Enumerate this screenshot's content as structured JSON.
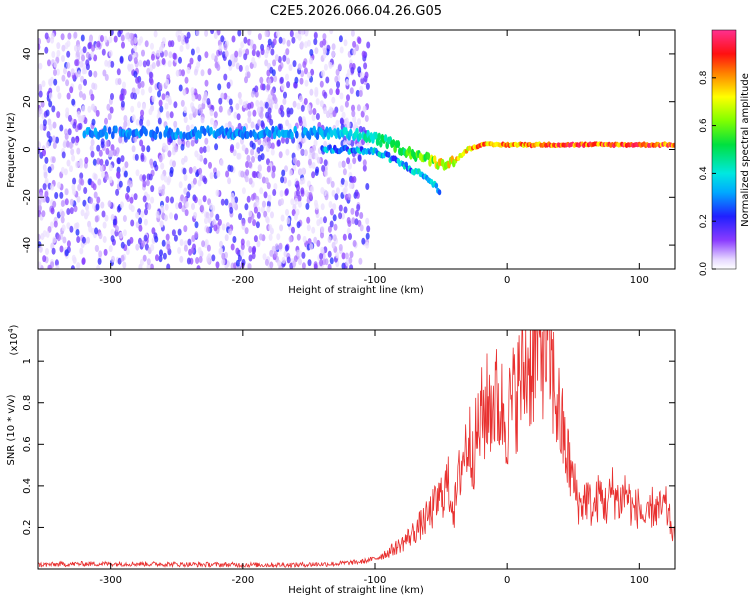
{
  "title": "C2E5.2026.066.04.26.G05",
  "colorbar": {
    "label": "Normalized spectral amplitude",
    "ticks": [
      "0.0",
      "0.2",
      "0.4",
      "0.6",
      "0.8"
    ],
    "range": [
      0,
      1
    ]
  },
  "chart_data": [
    {
      "type": "heatmap",
      "title": "C2E5.2026.066.04.26.G05",
      "xlabel": "Height of straight line (km)",
      "ylabel": "Frequency (Hz)",
      "xlim": [
        -355,
        127
      ],
      "ylim": [
        -50,
        50
      ],
      "x_ticks": [
        -300,
        -200,
        -100,
        0,
        100
      ],
      "x_tick_labels": [
        "-300",
        "-200",
        "-100",
        "0",
        "100"
      ],
      "y_ticks": [
        -40,
        -20,
        0,
        20,
        40
      ],
      "y_tick_labels": [
        "-40",
        "-20",
        "0",
        "20",
        "40"
      ],
      "noise_region_x": [
        -355,
        -105
      ],
      "signal_trace": {
        "x": [
          -320,
          -250,
          -200,
          -150,
          -110,
          -90,
          -75,
          -60,
          -50,
          -40,
          -30,
          -20,
          0,
          50,
          100,
          127
        ],
        "frequency": [
          7,
          7,
          7,
          7,
          6,
          3,
          -1,
          -4,
          -6,
          -5,
          0,
          2,
          2,
          2,
          2,
          2
        ],
        "amplitude": [
          0.3,
          0.3,
          0.3,
          0.3,
          0.4,
          0.5,
          0.55,
          0.6,
          0.7,
          0.7,
          0.75,
          0.8,
          0.8,
          0.85,
          0.85,
          0.85
        ]
      },
      "lower_branch": {
        "x": [
          -140,
          -120,
          -100,
          -90,
          -80,
          -70,
          -60,
          -55,
          -50
        ],
        "frequency": [
          0,
          0,
          -1,
          -3,
          -6,
          -9,
          -12,
          -15,
          -18
        ]
      }
    },
    {
      "type": "line",
      "xlabel": "Height of straight line (km)",
      "ylabel": "SNR (10 * v/v)",
      "y_multiplier_label": "(x10",
      "y_multiplier_exp": "4",
      "xlim": [
        -355,
        127
      ],
      "ylim": [
        0,
        1.15
      ],
      "x_ticks": [
        -300,
        -200,
        -100,
        0,
        100
      ],
      "x_tick_labels": [
        "-300",
        "-200",
        "-100",
        "0",
        "100"
      ],
      "y_ticks": [
        0.2,
        0.4,
        0.6,
        0.8,
        1
      ],
      "y_tick_labels": [
        "0.2",
        "0.4",
        "0.6",
        "0.8",
        "1"
      ],
      "color": "#e8302f",
      "series": [
        {
          "name": "SNR",
          "x": [
            -355,
            -320,
            -280,
            -240,
            -200,
            -160,
            -130,
            -110,
            -100,
            -90,
            -80,
            -70,
            -60,
            -50,
            -45,
            -40,
            -35,
            -30,
            -25,
            -20,
            -15,
            -10,
            -5,
            0,
            5,
            10,
            15,
            20,
            25,
            28,
            32,
            35,
            40,
            45,
            50,
            55,
            60,
            65,
            70,
            75,
            80,
            85,
            90,
            95,
            100,
            105,
            110,
            115,
            120,
            127
          ],
          "y": [
            0.02,
            0.025,
            0.025,
            0.022,
            0.02,
            0.02,
            0.025,
            0.035,
            0.05,
            0.08,
            0.12,
            0.18,
            0.25,
            0.35,
            0.42,
            0.28,
            0.5,
            0.62,
            0.58,
            0.72,
            0.78,
            0.82,
            0.78,
            0.72,
            0.82,
            0.9,
            0.98,
            1.02,
            1.08,
            1.1,
            1.02,
            0.9,
            0.72,
            0.55,
            0.42,
            0.3,
            0.35,
            0.28,
            0.36,
            0.3,
            0.38,
            0.32,
            0.38,
            0.28,
            0.3,
            0.22,
            0.3,
            0.28,
            0.3,
            0.14
          ]
        }
      ]
    }
  ]
}
